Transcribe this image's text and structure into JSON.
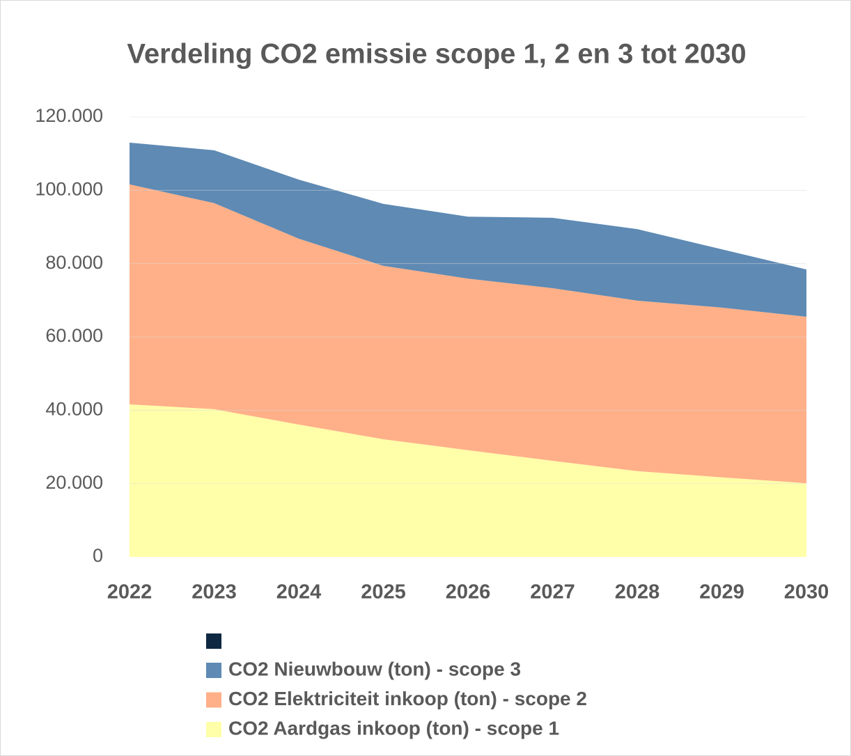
{
  "chart_data": {
    "type": "stacked_area",
    "title": "Verdeling CO2 emissie scope 1, 2 en 3 tot 2030",
    "categories": [
      "2022",
      "2023",
      "2024",
      "2025",
      "2026",
      "2027",
      "2028",
      "2029",
      "2030"
    ],
    "series": [
      {
        "name": "CO2 Nieuwbouw (ton) - scope 3",
        "color": "#5e8ab4",
        "values": [
          11400,
          14400,
          16100,
          16900,
          16900,
          19200,
          19500,
          15900,
          12900
        ]
      },
      {
        "name": "CO2 Elektriciteit inkoop (ton) - scope 2",
        "color": "#ffb088",
        "values": [
          60000,
          56200,
          50700,
          47300,
          46800,
          47100,
          46500,
          46300,
          45400
        ]
      },
      {
        "name": "CO2 Aardgas inkoop (ton) - scope 1",
        "color": "#ffffaa",
        "values": [
          41600,
          40300,
          36100,
          32100,
          29100,
          26200,
          23400,
          21700,
          20100
        ]
      }
    ],
    "ylim": [
      0,
      120000
    ],
    "yticks": [
      0,
      {
        "value": 20000,
        "label": "20.000"
      },
      {
        "value": 40000,
        "label": "40.000"
      },
      {
        "value": 60000,
        "label": "60.000"
      },
      {
        "value": 80000,
        "label": "80.000"
      },
      {
        "value": 100000,
        "label": "100.000"
      },
      {
        "value": 120000,
        "label": "120.000"
      }
    ],
    "grid": true
  }
}
